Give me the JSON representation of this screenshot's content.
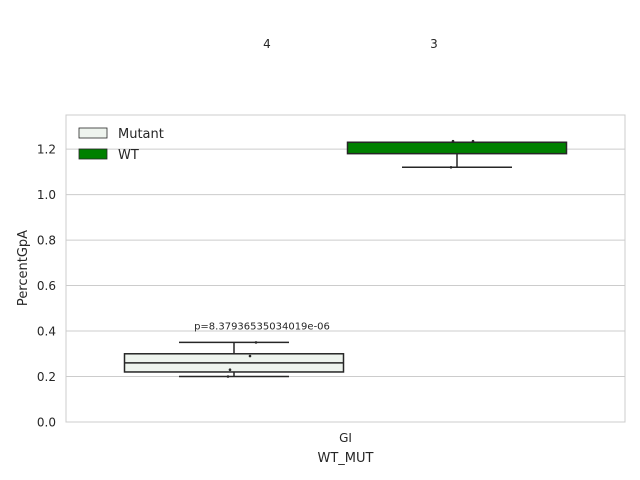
{
  "chart_data": {
    "type": "box",
    "xlabel": "WT_MUT",
    "ylabel": "PercentGpA",
    "categories": [
      "GI"
    ],
    "ylim": [
      0.0,
      1.35
    ],
    "yticks": [
      0.0,
      0.2,
      0.4,
      0.6,
      0.8,
      1.0,
      1.2
    ],
    "ytick_labels": [
      "0.0",
      "0.2",
      "0.4",
      "0.6",
      "0.8",
      "1.0",
      "1.2"
    ],
    "grid": true,
    "legend_position": "top-left",
    "series": [
      {
        "name": "Mutant",
        "color": "#eef4ee",
        "count_label": "4",
        "box": {
          "whisker_low": 0.2,
          "q1": 0.22,
          "median": 0.26,
          "q3": 0.3,
          "whisker_high": 0.35
        },
        "points": [
          0.2,
          0.23,
          0.29,
          0.35
        ]
      },
      {
        "name": "WT",
        "color": "#008000",
        "count_label": "3",
        "box": {
          "whisker_low": 1.12,
          "q1": 1.18,
          "median": 1.23,
          "q3": 1.23,
          "whisker_high": 1.23
        },
        "points": [
          1.12,
          1.235,
          1.235
        ]
      }
    ],
    "annotations": [
      {
        "text": "p=8.37936535034019e-06",
        "series": "Mutant"
      }
    ]
  }
}
